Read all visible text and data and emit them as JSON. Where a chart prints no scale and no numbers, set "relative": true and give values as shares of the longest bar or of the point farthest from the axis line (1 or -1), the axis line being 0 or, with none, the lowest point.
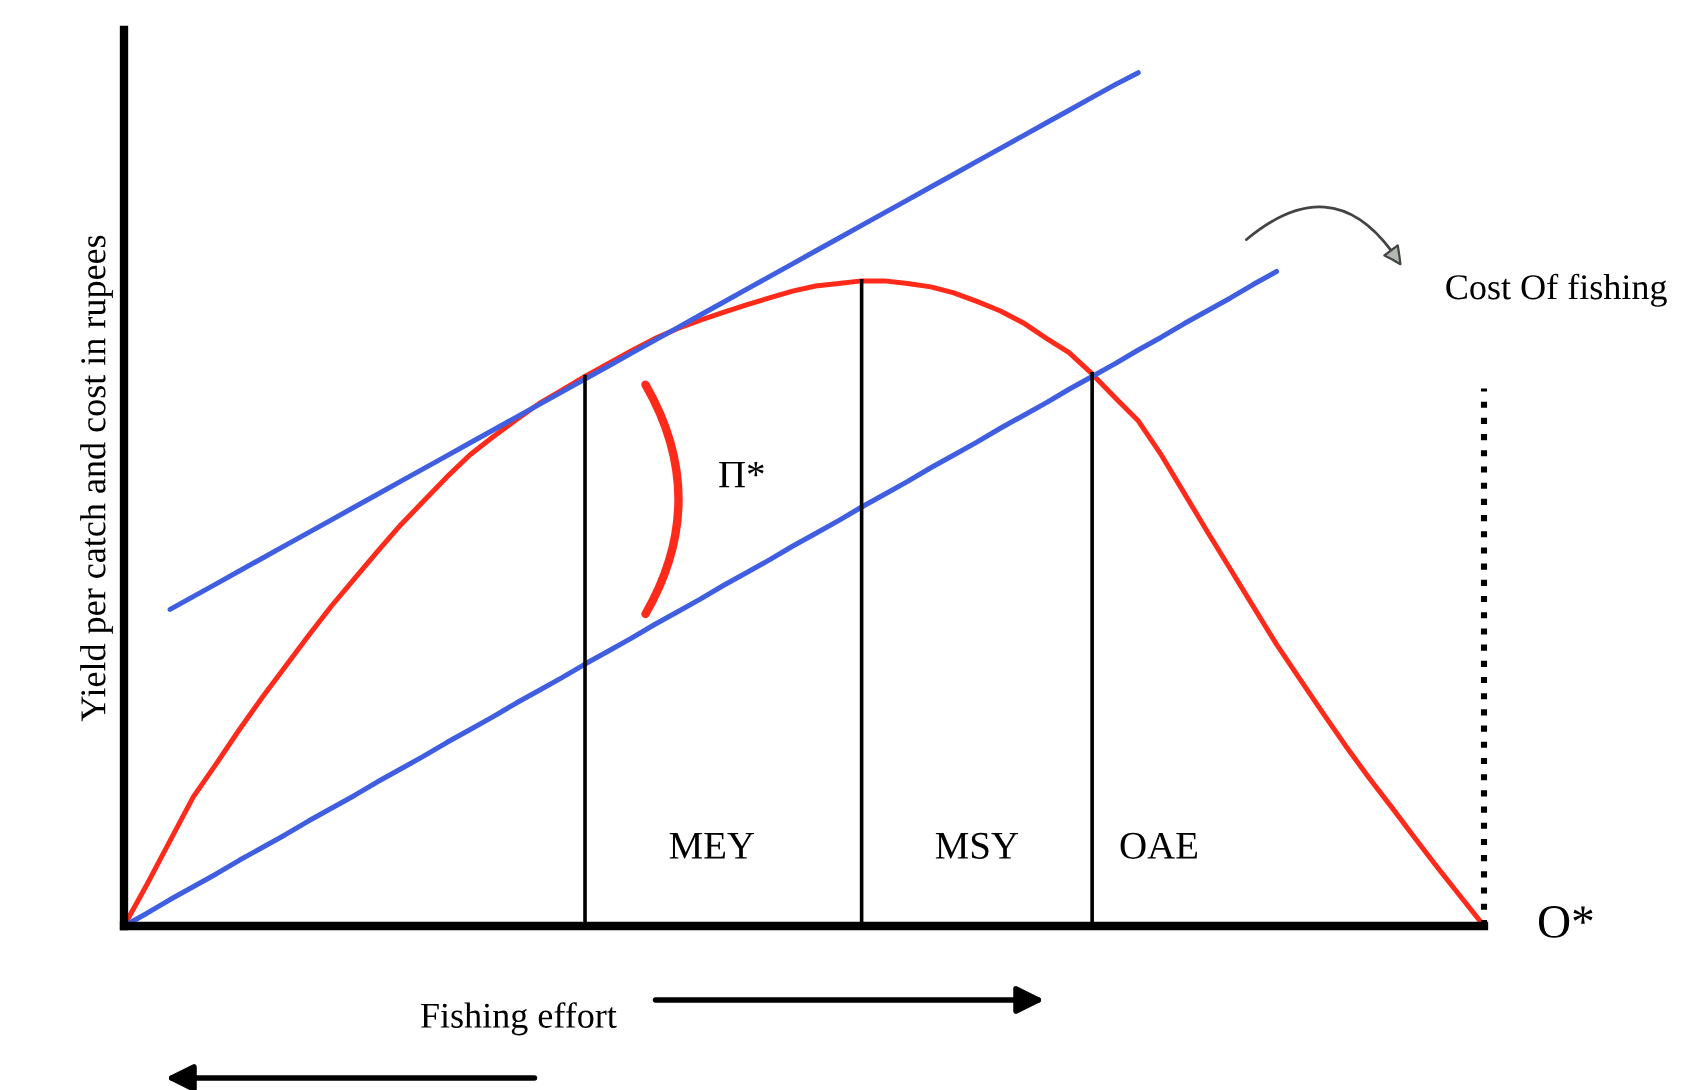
{
  "chart_data": {
    "type": "line",
    "relative": true,
    "marker": "none",
    "ylabel": "Yield per catch and cost in rupees",
    "xlabel": "Fishing effort",
    "categories": [
      null,
      null,
      null,
      null,
      null,
      null,
      null,
      null,
      null,
      null,
      null,
      null,
      null,
      null,
      null,
      null,
      null,
      null,
      null,
      null,
      null,
      null,
      null,
      null,
      null,
      null,
      null,
      null,
      null,
      null,
      null,
      null,
      null,
      null,
      null,
      null,
      null,
      null,
      null,
      null,
      null,
      null,
      null,
      null,
      null,
      null,
      null,
      null,
      null,
      null,
      null,
      null,
      null,
      null,
      null,
      null,
      null,
      null,
      null,
      null
    ],
    "series": [
      {
        "color": "#ff2a1a",
        "values": [
          0,
          0.049,
          0.1,
          0.151,
          0.19,
          0.23,
          0.268,
          0.304,
          0.34,
          0.375,
          0.407,
          0.439,
          0.47,
          0.498,
          0.526,
          0.552,
          0.573,
          0.593,
          0.612,
          0.628,
          0.644,
          0.659,
          0.674,
          0.688,
          0.7,
          0.71,
          0.719,
          0.728,
          0.736,
          0.744,
          0.75,
          0.753,
          0.756,
          0.756,
          0.753,
          0.749,
          0.742,
          0.732,
          0.721,
          0.707,
          0.689,
          0.672,
          0.647,
          0.619,
          0.592,
          0.552,
          0.507,
          0.462,
          0.418,
          0.374,
          0.33,
          0.29,
          0.25,
          0.211,
          0.174,
          0.139,
          0.103,
          0.068,
          0.034,
          0
        ]
      },
      {
        "color": "#3f5fe0",
        "values": [
          0,
          0.015,
          0.031,
          0.046,
          0.061,
          0.077,
          0.092,
          0.107,
          0.123,
          0.138,
          0.153,
          0.169,
          0.184,
          0.199,
          0.215,
          0.23,
          0.245,
          0.261,
          0.276,
          0.291,
          0.307,
          0.322,
          0.337,
          0.353,
          0.368,
          0.383,
          0.399,
          0.414,
          0.429,
          0.445,
          0.46,
          0.475,
          0.491,
          0.506,
          0.521,
          0.537,
          0.552,
          0.567,
          0.583,
          0.598,
          0.613,
          0.629,
          0.644,
          0.659,
          0.675,
          0.69,
          0.706,
          0.721,
          0.736,
          0.752,
          0.767,
          null,
          null,
          null,
          null,
          null,
          null,
          null,
          null,
          null
        ]
      },
      {
        "color": "#3f5fe0",
        "values": [
          null,
          null,
          0.371,
          0.386,
          0.401,
          0.416,
          0.431,
          0.446,
          0.461,
          0.476,
          0.491,
          0.506,
          0.521,
          0.536,
          0.551,
          0.566,
          0.581,
          0.596,
          0.611,
          0.626,
          0.641,
          0.656,
          0.671,
          0.686,
          0.701,
          0.716,
          0.731,
          0.746,
          0.761,
          0.776,
          0.791,
          0.806,
          0.821,
          0.836,
          0.851,
          0.866,
          0.881,
          0.896,
          0.911,
          0.926,
          0.941,
          0.956,
          0.971,
          0.986,
          1.0,
          null,
          null,
          null,
          null,
          null,
          null,
          null,
          null,
          null,
          null,
          null,
          null,
          null,
          null,
          null
        ]
      }
    ],
    "annotations": [
      "Π*",
      "MEY",
      "MSY",
      "OAE",
      "Cost Of fishing",
      "O*"
    ]
  }
}
